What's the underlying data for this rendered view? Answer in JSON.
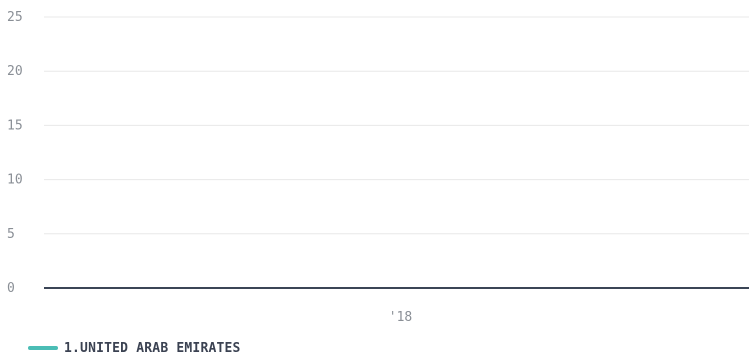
{
  "chart_data": {
    "type": "line",
    "x": [
      "'18"
    ],
    "y_ticks": [
      0,
      5,
      10,
      15,
      20,
      25
    ],
    "ylim": [
      0,
      25
    ],
    "grid": true,
    "legend_position": "bottom-left",
    "series": [
      {
        "name": "1.UNITED ARAB EMIRATES",
        "values": [
          0
        ],
        "color": "#4bbdb5"
      }
    ],
    "axis_color": "#3b4556",
    "grid_color": "#e8e8e8"
  }
}
